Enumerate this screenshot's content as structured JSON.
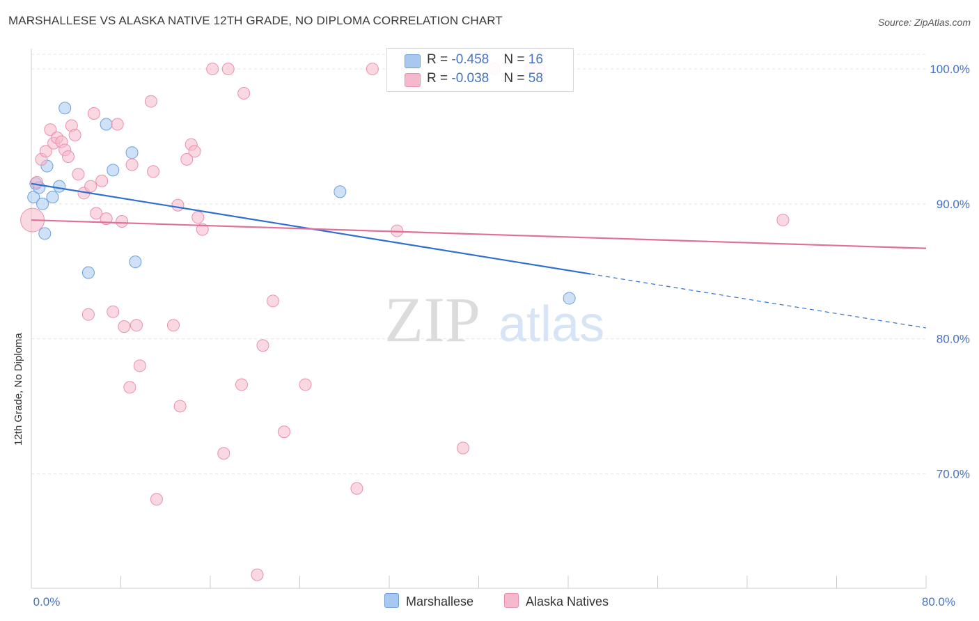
{
  "header": {
    "title": "MARSHALLESE VS ALASKA NATIVE 12TH GRADE, NO DIPLOMA CORRELATION CHART",
    "source": "Source: ZipAtlas.com"
  },
  "watermark": {
    "zip": "ZIP",
    "atlas": "atlas"
  },
  "legend": {
    "rows": [
      {
        "r_label": "R = ",
        "r_value": "-0.458",
        "n_label": "N = ",
        "n_value": "16",
        "color": "#a8c8f0"
      },
      {
        "r_label": "R = ",
        "r_value": "-0.038",
        "n_label": "N = ",
        "n_value": "58",
        "color": "#f6b8cb"
      }
    ]
  },
  "chart_data": {
    "type": "scatter",
    "title": "MARSHALLESE VS ALASKA NATIVE 12TH GRADE, NO DIPLOMA CORRELATION CHART",
    "xlabel": "",
    "ylabel": "12th Grade, No Diploma",
    "xlim": [
      0,
      80
    ],
    "ylim": [
      61.5,
      101.5
    ],
    "x_tick_labels": [
      {
        "value": 0,
        "label": "0.0%"
      },
      {
        "value": 80,
        "label": "80.0%"
      }
    ],
    "y_tick_labels": [
      {
        "value": 100,
        "label": "100.0%"
      },
      {
        "value": 90,
        "label": "90.0%"
      },
      {
        "value": 80,
        "label": "80.0%"
      },
      {
        "value": 70,
        "label": "70.0%"
      }
    ],
    "grid": true,
    "legend_position": "top-center",
    "series": [
      {
        "name": "Marshallese",
        "color": "#6a9fe0",
        "fill": "#a8c8f0",
        "trend": {
          "x1": 0,
          "y1": 91.5,
          "x2": 50,
          "y2": 84.8,
          "dash_to_x": 80,
          "dash_to_y": 80.8,
          "color": "#2f6fd0"
        },
        "points": [
          {
            "x": 0.2,
            "y": 90.5,
            "s": 1
          },
          {
            "x": 0.4,
            "y": 91.5,
            "s": 1
          },
          {
            "x": 0.7,
            "y": 91.2,
            "s": 1
          },
          {
            "x": 1.0,
            "y": 90.0,
            "s": 1
          },
          {
            "x": 1.2,
            "y": 87.8,
            "s": 1
          },
          {
            "x": 1.4,
            "y": 92.8,
            "s": 1
          },
          {
            "x": 1.9,
            "y": 90.5,
            "s": 1
          },
          {
            "x": 2.5,
            "y": 91.3,
            "s": 1
          },
          {
            "x": 3.0,
            "y": 97.1,
            "s": 1
          },
          {
            "x": 5.1,
            "y": 84.9,
            "s": 1
          },
          {
            "x": 6.7,
            "y": 95.9,
            "s": 1
          },
          {
            "x": 7.3,
            "y": 92.5,
            "s": 1
          },
          {
            "x": 9.0,
            "y": 93.8,
            "s": 1
          },
          {
            "x": 9.3,
            "y": 85.7,
            "s": 1
          },
          {
            "x": 27.6,
            "y": 90.9,
            "s": 1
          },
          {
            "x": 48.1,
            "y": 83.0,
            "s": 1
          }
        ]
      },
      {
        "name": "Alaska Natives",
        "color": "#ea8fae",
        "fill": "#f6b8cb",
        "trend": {
          "x1": 0,
          "y1": 88.8,
          "x2": 80,
          "y2": 86.7,
          "color": "#e0709a"
        },
        "points": [
          {
            "x": 0.1,
            "y": 88.8,
            "s": 2.0
          },
          {
            "x": 0.5,
            "y": 91.6,
            "s": 1
          },
          {
            "x": 0.9,
            "y": 93.3,
            "s": 1
          },
          {
            "x": 1.3,
            "y": 93.9,
            "s": 1
          },
          {
            "x": 1.7,
            "y": 95.5,
            "s": 1
          },
          {
            "x": 2.0,
            "y": 94.5,
            "s": 1
          },
          {
            "x": 2.3,
            "y": 94.9,
            "s": 1
          },
          {
            "x": 2.7,
            "y": 94.6,
            "s": 1
          },
          {
            "x": 3.0,
            "y": 94.0,
            "s": 1
          },
          {
            "x": 3.3,
            "y": 93.5,
            "s": 1
          },
          {
            "x": 3.6,
            "y": 95.8,
            "s": 1
          },
          {
            "x": 3.9,
            "y": 95.1,
            "s": 1
          },
          {
            "x": 4.2,
            "y": 92.2,
            "s": 1
          },
          {
            "x": 4.7,
            "y": 90.8,
            "s": 1
          },
          {
            "x": 5.1,
            "y": 81.8,
            "s": 1
          },
          {
            "x": 5.3,
            "y": 91.3,
            "s": 1
          },
          {
            "x": 5.6,
            "y": 96.7,
            "s": 1
          },
          {
            "x": 5.8,
            "y": 89.3,
            "s": 1
          },
          {
            "x": 6.3,
            "y": 91.7,
            "s": 1
          },
          {
            "x": 6.7,
            "y": 88.9,
            "s": 1
          },
          {
            "x": 7.3,
            "y": 82.0,
            "s": 1
          },
          {
            "x": 7.7,
            "y": 95.9,
            "s": 1
          },
          {
            "x": 8.1,
            "y": 88.7,
            "s": 1
          },
          {
            "x": 8.3,
            "y": 80.9,
            "s": 1
          },
          {
            "x": 8.8,
            "y": 76.4,
            "s": 1
          },
          {
            "x": 9.0,
            "y": 92.9,
            "s": 1
          },
          {
            "x": 9.4,
            "y": 81.0,
            "s": 1
          },
          {
            "x": 9.7,
            "y": 78.0,
            "s": 1
          },
          {
            "x": 10.7,
            "y": 97.6,
            "s": 1
          },
          {
            "x": 10.9,
            "y": 92.4,
            "s": 1
          },
          {
            "x": 11.2,
            "y": 68.1,
            "s": 1
          },
          {
            "x": 12.7,
            "y": 81.0,
            "s": 1
          },
          {
            "x": 13.1,
            "y": 89.9,
            "s": 1
          },
          {
            "x": 13.3,
            "y": 75.0,
            "s": 1
          },
          {
            "x": 13.9,
            "y": 93.3,
            "s": 1
          },
          {
            "x": 14.3,
            "y": 94.4,
            "s": 1
          },
          {
            "x": 14.6,
            "y": 93.9,
            "s": 1
          },
          {
            "x": 14.9,
            "y": 89.0,
            "s": 1
          },
          {
            "x": 15.3,
            "y": 88.1,
            "s": 1
          },
          {
            "x": 16.2,
            "y": 100.0,
            "s": 1
          },
          {
            "x": 17.2,
            "y": 71.5,
            "s": 1
          },
          {
            "x": 17.6,
            "y": 100.0,
            "s": 1
          },
          {
            "x": 18.8,
            "y": 76.6,
            "s": 1
          },
          {
            "x": 19.0,
            "y": 98.2,
            "s": 1
          },
          {
            "x": 20.2,
            "y": 62.5,
            "s": 1
          },
          {
            "x": 20.7,
            "y": 79.5,
            "s": 1
          },
          {
            "x": 21.6,
            "y": 82.8,
            "s": 1
          },
          {
            "x": 22.6,
            "y": 73.1,
            "s": 1
          },
          {
            "x": 24.5,
            "y": 76.6,
            "s": 1
          },
          {
            "x": 29.1,
            "y": 68.9,
            "s": 1
          },
          {
            "x": 30.5,
            "y": 100.0,
            "s": 1
          },
          {
            "x": 32.7,
            "y": 88.0,
            "s": 1
          },
          {
            "x": 38.6,
            "y": 71.9,
            "s": 1
          },
          {
            "x": 41.4,
            "y": 100.0,
            "s": 1
          },
          {
            "x": 44.6,
            "y": 100.0,
            "s": 1
          },
          {
            "x": 45.4,
            "y": 100.0,
            "s": 1
          },
          {
            "x": 67.2,
            "y": 88.8,
            "s": 1
          }
        ]
      }
    ]
  },
  "bottom_legend": {
    "items": [
      {
        "label": "Marshallese",
        "color": "#a8c8f0"
      },
      {
        "label": "Alaska Natives",
        "color": "#f6b8cb"
      }
    ]
  }
}
